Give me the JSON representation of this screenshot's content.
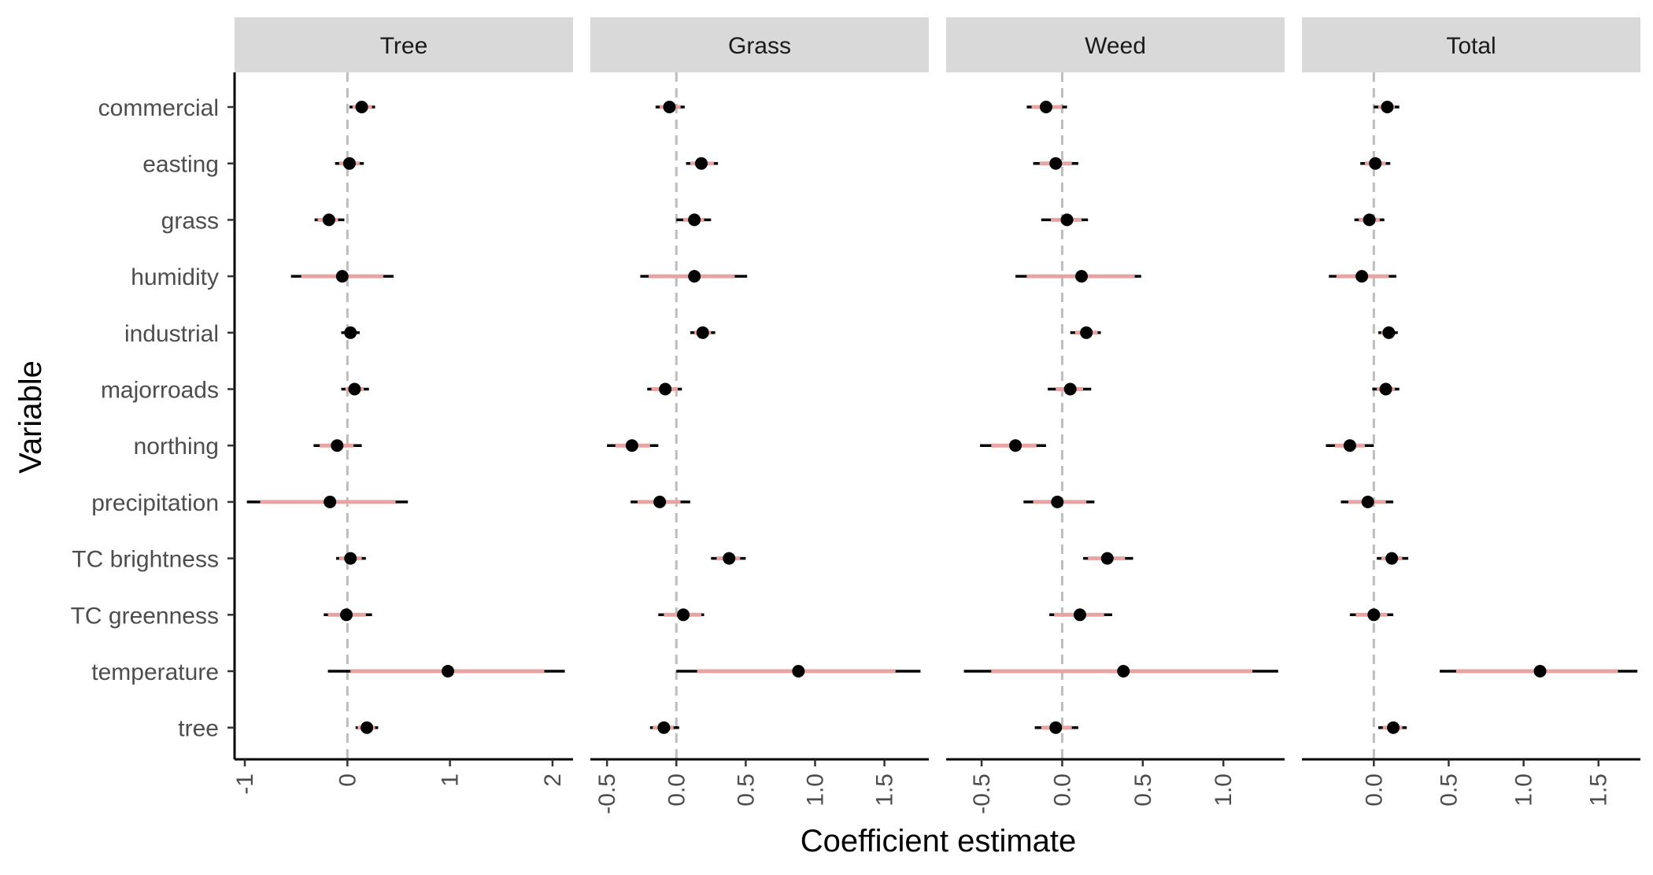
{
  "chart_data": {
    "type": "scatter",
    "subtype": "coefficient-plot-with-intervals",
    "xlabel": "Coefficient estimate",
    "ylabel": "Variable",
    "grid": false,
    "reference_line_x": 0,
    "variables": [
      "commercial",
      "easting",
      "grass",
      "humidity",
      "industrial",
      "majorroads",
      "northing",
      "precipitation",
      "TC brightness",
      "TC greenness",
      "temperature",
      "tree"
    ],
    "colors": {
      "inner_interval": "#e8a3a3",
      "outer_interval": "#000000",
      "point": "#000000",
      "reference_line": "#bdbdbd",
      "strip_background": "#d9d9d9"
    },
    "panels": [
      {
        "name": "Tree",
        "xlim": [
          -1.1,
          2.2
        ],
        "ticks": [
          -1,
          0,
          1,
          2
        ],
        "tick_labels": [
          "-1",
          "0",
          "1",
          "2"
        ],
        "estimates": [
          0.14,
          0.02,
          -0.18,
          -0.05,
          0.03,
          0.07,
          -0.1,
          -0.17,
          0.03,
          -0.01,
          0.98,
          0.19
        ],
        "inner_intervals": [
          [
            0.05,
            0.24
          ],
          [
            -0.08,
            0.12
          ],
          [
            -0.29,
            -0.09
          ],
          [
            -0.45,
            0.35
          ],
          [
            -0.03,
            0.09
          ],
          [
            -0.02,
            0.16
          ],
          [
            -0.27,
            0.06
          ],
          [
            -0.85,
            0.47
          ],
          [
            -0.08,
            0.14
          ],
          [
            -0.19,
            0.18
          ],
          [
            0.03,
            1.92
          ],
          [
            0.1,
            0.27
          ]
        ],
        "outer_intervals": [
          [
            0.02,
            0.27
          ],
          [
            -0.12,
            0.16
          ],
          [
            -0.32,
            -0.03
          ],
          [
            -0.55,
            0.45
          ],
          [
            -0.06,
            0.12
          ],
          [
            -0.06,
            0.21
          ],
          [
            -0.33,
            0.14
          ],
          [
            -0.98,
            0.59
          ],
          [
            -0.11,
            0.18
          ],
          [
            -0.23,
            0.24
          ],
          [
            -0.19,
            2.12
          ],
          [
            0.08,
            0.3
          ]
        ]
      },
      {
        "name": "Grass",
        "xlim": [
          -0.62,
          1.82
        ],
        "ticks": [
          -0.5,
          0.0,
          0.5,
          1.0,
          1.5
        ],
        "tick_labels": [
          "-0.5",
          "0.0",
          "0.5",
          "1.0",
          "1.5"
        ],
        "estimates": [
          -0.05,
          0.18,
          0.13,
          0.13,
          0.19,
          -0.08,
          -0.32,
          -0.12,
          0.38,
          0.05,
          0.88,
          -0.09
        ],
        "inner_intervals": [
          [
            -0.12,
            0.03
          ],
          [
            0.1,
            0.27
          ],
          [
            0.05,
            0.2
          ],
          [
            -0.2,
            0.42
          ],
          [
            0.13,
            0.25
          ],
          [
            -0.18,
            0.01
          ],
          [
            -0.44,
            -0.19
          ],
          [
            -0.28,
            0.03
          ],
          [
            0.29,
            0.46
          ],
          [
            -0.09,
            0.18
          ],
          [
            0.15,
            1.58
          ],
          [
            -0.17,
            -0.02
          ]
        ],
        "outer_intervals": [
          [
            -0.15,
            0.06
          ],
          [
            0.07,
            0.3
          ],
          [
            0.0,
            0.25
          ],
          [
            -0.26,
            0.51
          ],
          [
            0.1,
            0.28
          ],
          [
            -0.21,
            0.04
          ],
          [
            -0.5,
            -0.13
          ],
          [
            -0.33,
            0.1
          ],
          [
            0.25,
            0.5
          ],
          [
            -0.13,
            0.2
          ],
          [
            0.0,
            1.76
          ],
          [
            -0.19,
            0.02
          ]
        ]
      },
      {
        "name": "Weed",
        "xlim": [
          -0.72,
          1.38
        ],
        "ticks": [
          -0.5,
          0.0,
          0.5,
          1.0
        ],
        "tick_labels": [
          "-0.5",
          "0.0",
          "0.5",
          "1.0"
        ],
        "estimates": [
          -0.1,
          -0.04,
          0.03,
          0.12,
          0.15,
          0.05,
          -0.29,
          -0.03,
          0.28,
          0.11,
          0.38,
          -0.04
        ],
        "inner_intervals": [
          [
            -0.19,
            0.0
          ],
          [
            -0.14,
            0.06
          ],
          [
            -0.07,
            0.12
          ],
          [
            -0.22,
            0.45
          ],
          [
            0.08,
            0.22
          ],
          [
            -0.04,
            0.13
          ],
          [
            -0.44,
            -0.16
          ],
          [
            -0.18,
            0.15
          ],
          [
            0.16,
            0.39
          ],
          [
            -0.05,
            0.26
          ],
          [
            -0.44,
            1.18
          ],
          [
            -0.13,
            0.06
          ]
        ],
        "outer_intervals": [
          [
            -0.22,
            0.03
          ],
          [
            -0.18,
            0.1
          ],
          [
            -0.13,
            0.16
          ],
          [
            -0.29,
            0.49
          ],
          [
            0.05,
            0.24
          ],
          [
            -0.09,
            0.18
          ],
          [
            -0.51,
            -0.1
          ],
          [
            -0.24,
            0.2
          ],
          [
            0.13,
            0.44
          ],
          [
            -0.08,
            0.31
          ],
          [
            -0.61,
            1.34
          ],
          [
            -0.17,
            0.1
          ]
        ]
      },
      {
        "name": "Total",
        "xlim": [
          -0.48,
          1.78
        ],
        "ticks": [
          0.0,
          0.5,
          1.0,
          1.5
        ],
        "tick_labels": [
          "0.0",
          "0.5",
          "1.0",
          "1.5"
        ],
        "estimates": [
          0.09,
          0.01,
          -0.03,
          -0.08,
          0.1,
          0.08,
          -0.16,
          -0.04,
          0.12,
          -0.0,
          1.11,
          0.13
        ],
        "inner_intervals": [
          [
            0.03,
            0.14
          ],
          [
            -0.06,
            0.08
          ],
          [
            -0.1,
            0.04
          ],
          [
            -0.25,
            0.1
          ],
          [
            0.05,
            0.14
          ],
          [
            0.02,
            0.14
          ],
          [
            -0.26,
            -0.06
          ],
          [
            -0.17,
            0.08
          ],
          [
            0.05,
            0.19
          ],
          [
            -0.12,
            0.09
          ],
          [
            0.55,
            1.63
          ],
          [
            0.06,
            0.19
          ]
        ],
        "outer_intervals": [
          [
            0.0,
            0.17
          ],
          [
            -0.09,
            0.11
          ],
          [
            -0.13,
            0.07
          ],
          [
            -0.3,
            0.15
          ],
          [
            0.03,
            0.16
          ],
          [
            -0.01,
            0.17
          ],
          [
            -0.32,
            0.0
          ],
          [
            -0.22,
            0.13
          ],
          [
            0.02,
            0.23
          ],
          [
            -0.16,
            0.13
          ],
          [
            0.44,
            1.76
          ],
          [
            0.03,
            0.22
          ]
        ]
      }
    ]
  }
}
